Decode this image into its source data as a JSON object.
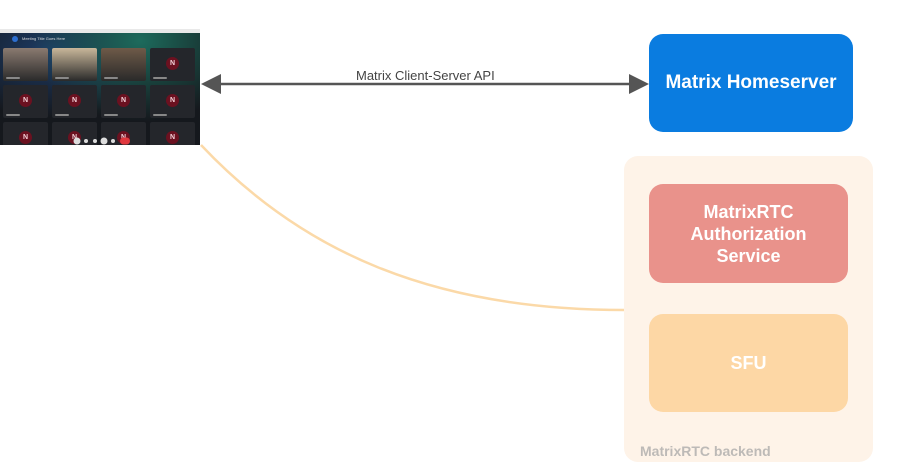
{
  "client": {
    "meeting_title": "Meeting Title Goes Here",
    "tiles": [
      {
        "type": "video",
        "color": "#8a7a70"
      },
      {
        "type": "video",
        "color": "#c9b79a"
      },
      {
        "type": "video",
        "color": "#6e5a48"
      },
      {
        "type": "avatar",
        "initial": "N"
      },
      {
        "type": "avatar",
        "initial": "N"
      },
      {
        "type": "avatar",
        "initial": "N"
      },
      {
        "type": "avatar",
        "initial": "N"
      },
      {
        "type": "avatar",
        "initial": "N"
      },
      {
        "type": "avatar",
        "initial": "N"
      },
      {
        "type": "avatar",
        "initial": "N"
      },
      {
        "type": "avatar",
        "initial": "N"
      },
      {
        "type": "avatar",
        "initial": "N"
      }
    ]
  },
  "connections": {
    "client_server_api": "Matrix Client-Server API"
  },
  "nodes": {
    "homeserver": "Matrix Homeserver",
    "auth_service": "MatrixRTC Authorization Service",
    "sfu": "SFU",
    "backend_group": "MatrixRTC backend"
  },
  "colors": {
    "homeserver": "#0a7ce0",
    "auth_service": "#e9928b",
    "sfu": "#fdd7a5",
    "backend_group": "#fef3e8",
    "sfu_link": "#fbd9a8",
    "api_arrow": "#555555"
  }
}
